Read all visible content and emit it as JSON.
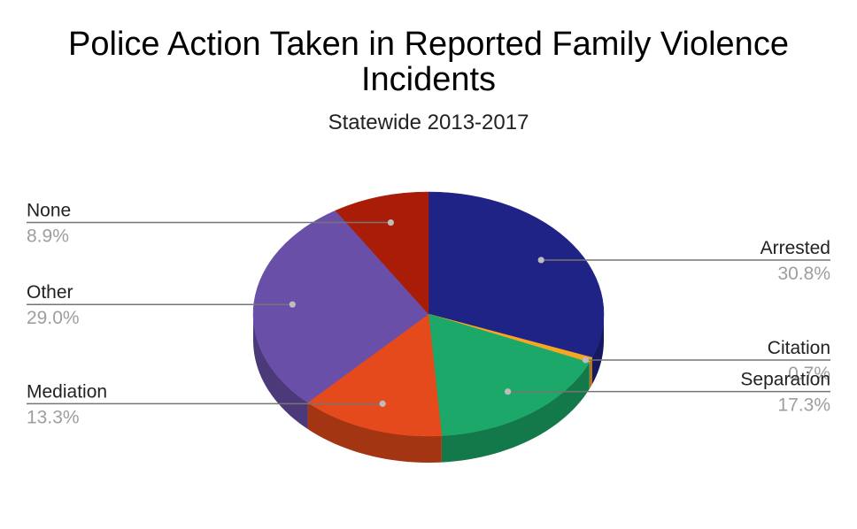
{
  "chart_data": {
    "type": "pie",
    "title": "Police Action Taken in Reported Family Violence Incidents",
    "subtitle": "Statewide 2013-2017",
    "slices": [
      {
        "label": "Arrested",
        "value": 30.8,
        "pct_text": "30.8%",
        "color": "#1f2385"
      },
      {
        "label": "Citation",
        "value": 0.7,
        "pct_text": "0.7%",
        "color": "#f5a623"
      },
      {
        "label": "Separation",
        "value": 17.3,
        "pct_text": "17.3%",
        "color": "#1ba868"
      },
      {
        "label": "Mediation",
        "value": 13.3,
        "pct_text": "13.3%",
        "color": "#e44a1b"
      },
      {
        "label": "Other",
        "value": 29.0,
        "pct_text": "29.0%",
        "color": "#6a4fa8"
      },
      {
        "label": "None",
        "value": 8.9,
        "pct_text": "8.9%",
        "color": "#a81c08"
      }
    ],
    "style": "3d-pie",
    "legend": "none (labels beside slices)"
  }
}
